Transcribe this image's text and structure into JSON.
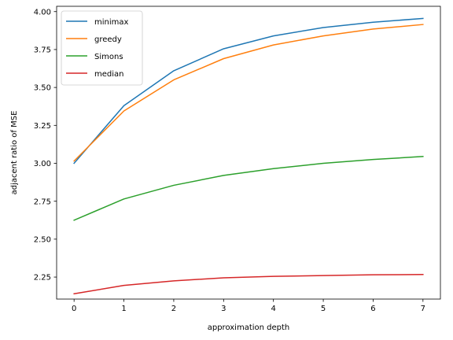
{
  "chart_data": {
    "type": "line",
    "title": "",
    "xlabel": "approximation depth",
    "ylabel": "adjacent ratio of MSE",
    "x": [
      0,
      1,
      2,
      3,
      4,
      5,
      6,
      7
    ],
    "xlim": [
      -0.35,
      7.35
    ],
    "ylim": [
      2.105,
      4.035
    ],
    "xticks": [
      0,
      1,
      2,
      3,
      4,
      5,
      6,
      7
    ],
    "yticks": [
      2.25,
      2.5,
      2.75,
      3.0,
      3.25,
      3.5,
      3.75,
      4.0
    ],
    "ytick_labels": [
      "2.25",
      "2.50",
      "2.75",
      "3.00",
      "3.25",
      "3.50",
      "3.75",
      "4.00"
    ],
    "grid": false,
    "legend_position": "top-left",
    "series": [
      {
        "name": "minimax",
        "color": "#1f77b4",
        "values": [
          3.0,
          3.38,
          3.61,
          3.755,
          3.84,
          3.895,
          3.93,
          3.955
        ]
      },
      {
        "name": "greedy",
        "color": "#ff7f0e",
        "values": [
          3.015,
          3.345,
          3.55,
          3.69,
          3.78,
          3.84,
          3.885,
          3.915
        ]
      },
      {
        "name": "Simons",
        "color": "#2ca02c",
        "values": [
          2.625,
          2.765,
          2.855,
          2.92,
          2.965,
          3.0,
          3.025,
          3.045
        ]
      },
      {
        "name": "median",
        "color": "#d62728",
        "values": [
          2.14,
          2.195,
          2.225,
          2.245,
          2.255,
          2.26,
          2.265,
          2.267
        ]
      }
    ]
  }
}
